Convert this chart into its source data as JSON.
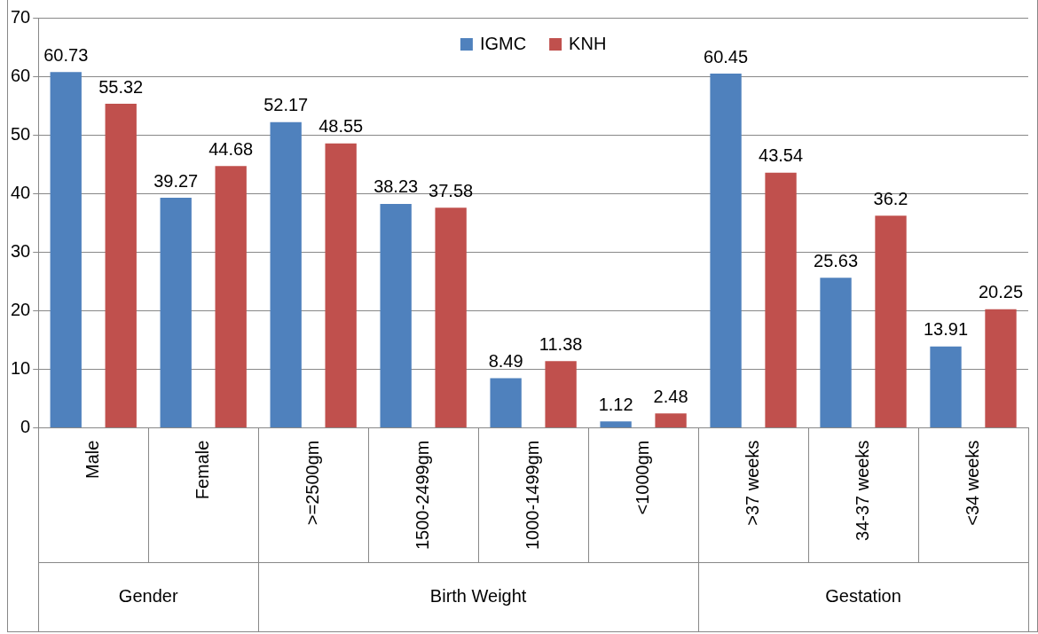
{
  "chart_data": {
    "type": "bar",
    "categories": [
      "Male",
      "Female",
      ">=2500gm",
      "1500-2499gm",
      "1000-1499gm",
      "<1000gm",
      ">37 weeks",
      "34-37 weeks",
      "<34 weeks"
    ],
    "series": [
      {
        "name": "IGMC",
        "color": "#4f81bd",
        "values": [
          60.73,
          39.27,
          52.17,
          38.23,
          8.49,
          1.12,
          60.45,
          25.63,
          13.91
        ]
      },
      {
        "name": "KNH",
        "color": "#c0504d",
        "values": [
          55.32,
          44.68,
          48.55,
          37.58,
          11.38,
          2.48,
          43.54,
          36.2,
          20.25
        ]
      }
    ],
    "ylim": [
      0,
      70
    ],
    "yticks": [
      0,
      10,
      20,
      30,
      40,
      50,
      60,
      70
    ],
    "grid": "y",
    "legend": "top",
    "data_labels": true,
    "annotations": [
      "Gender",
      "Birth Weight",
      "Gestation"
    ]
  }
}
